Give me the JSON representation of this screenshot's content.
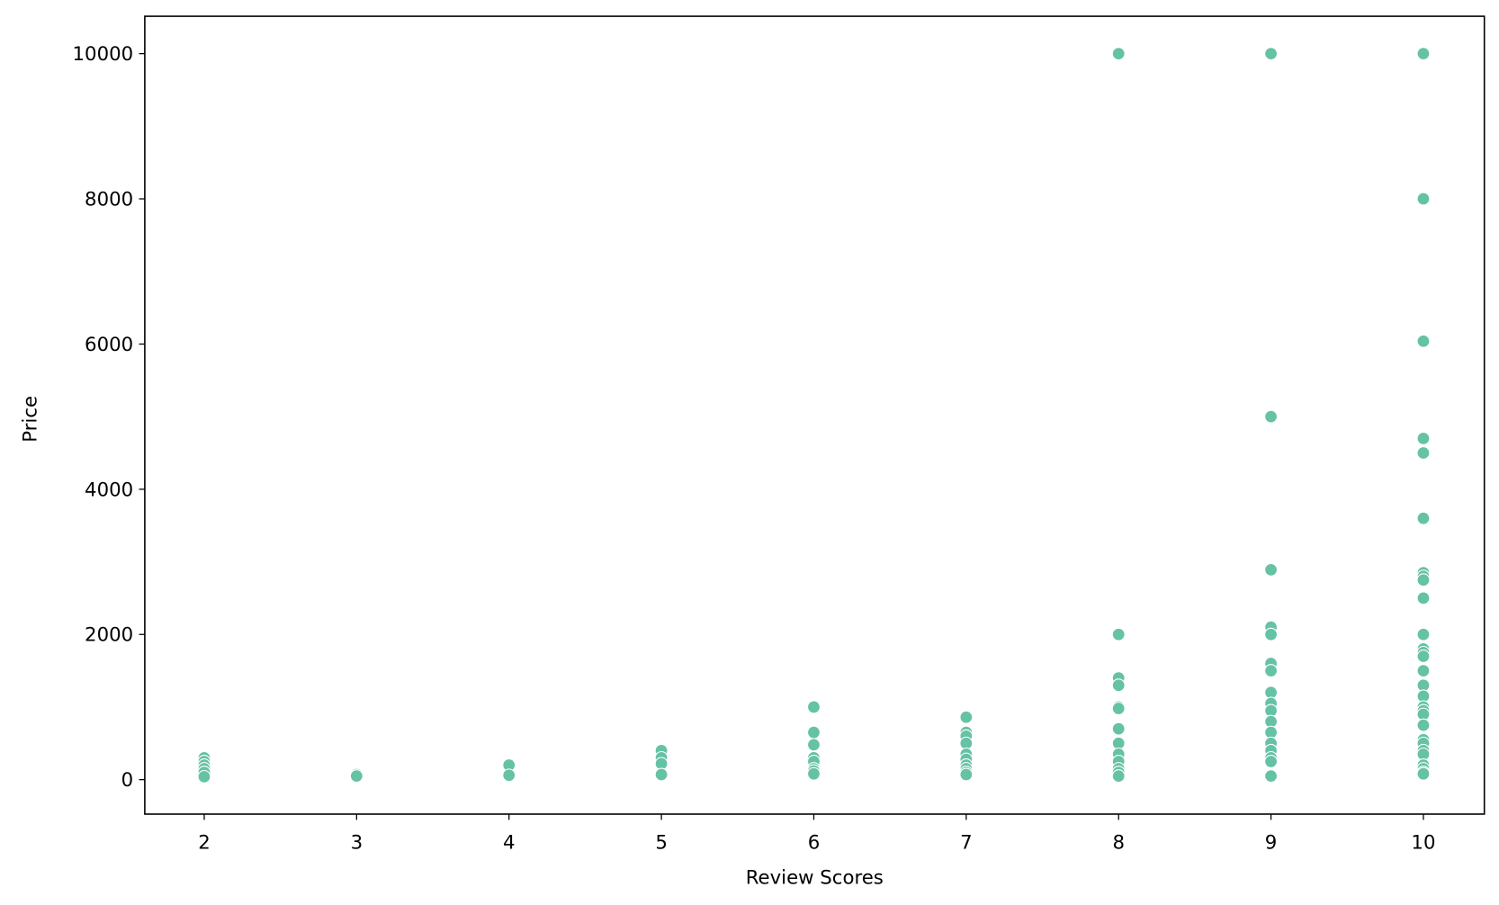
{
  "chart_data": {
    "type": "scatter",
    "x_label": "Review Scores",
    "y_label": "Price",
    "color": "#66c2a5",
    "x": [
      2,
      2,
      2,
      2,
      2,
      2,
      3,
      3,
      4,
      4,
      5,
      5,
      5,
      5,
      6,
      6,
      6,
      6,
      6,
      6,
      6,
      6,
      7,
      7,
      7,
      7,
      7,
      7,
      7,
      7,
      7,
      7,
      8,
      8,
      8,
      8,
      8,
      8,
      8,
      8,
      8,
      8,
      8,
      8,
      8,
      9,
      9,
      9,
      9,
      9,
      9,
      9,
      9,
      9,
      9,
      9,
      9,
      9,
      9,
      9,
      9,
      9,
      10,
      10,
      10,
      10,
      10,
      10,
      10,
      10,
      10,
      10,
      10,
      10,
      10,
      10,
      10,
      10,
      10,
      10,
      10,
      10,
      10,
      10,
      10,
      10,
      10,
      10,
      10,
      10,
      10
    ],
    "y": [
      300,
      250,
      200,
      150,
      100,
      40,
      70,
      50,
      200,
      60,
      400,
      300,
      220,
      70,
      1000,
      650,
      480,
      300,
      250,
      150,
      120,
      80,
      860,
      650,
      600,
      500,
      350,
      280,
      200,
      150,
      100,
      70,
      10000,
      2000,
      1400,
      1300,
      1000,
      980,
      700,
      500,
      350,
      250,
      150,
      100,
      50,
      10000,
      5000,
      2890,
      2100,
      2000,
      1600,
      1500,
      1200,
      1050,
      950,
      800,
      650,
      500,
      400,
      300,
      250,
      50,
      10000,
      8000,
      6040,
      4700,
      4500,
      3600,
      2850,
      2800,
      2750,
      2500,
      2000,
      1800,
      1750,
      1700,
      1500,
      1300,
      1150,
      1000,
      950,
      900,
      750,
      550,
      500,
      400,
      350,
      200,
      150,
      100,
      80
    ],
    "xlim": [
      1.61,
      10.4
    ],
    "ylim": [
      -475,
      10515
    ],
    "xticks": [
      2,
      3,
      4,
      5,
      6,
      7,
      8,
      9,
      10
    ],
    "yticks": [
      0,
      2000,
      4000,
      6000,
      8000,
      10000
    ]
  }
}
